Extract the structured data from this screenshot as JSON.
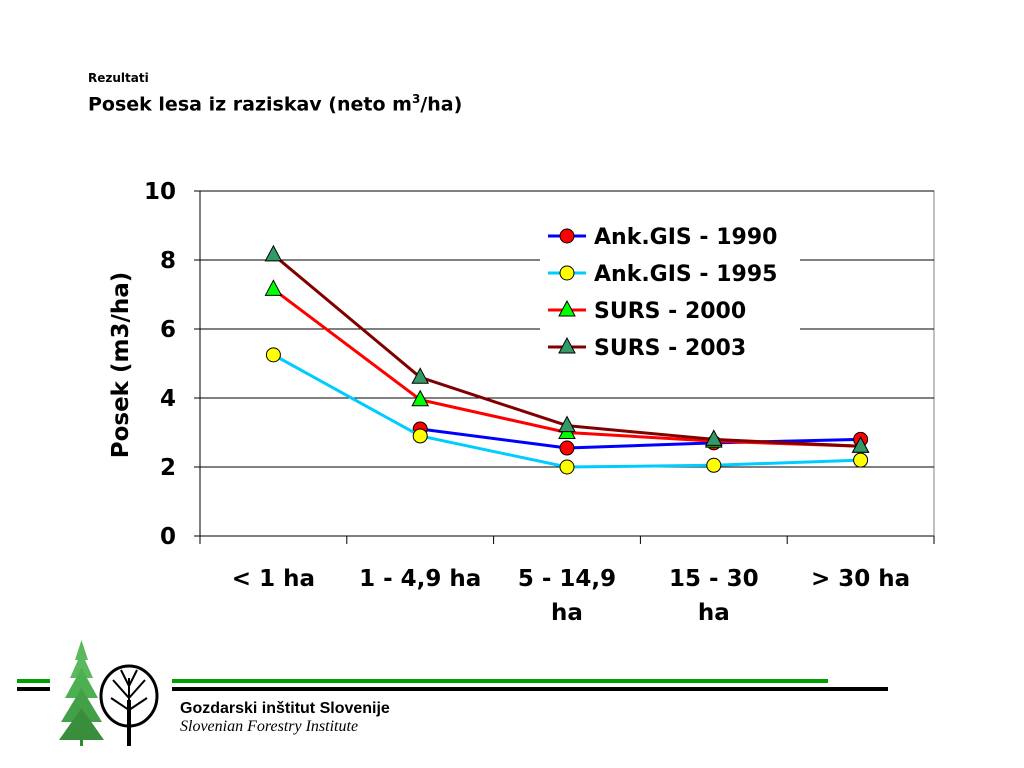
{
  "header": {
    "subtitle": "Rezultati",
    "title": "Posek lesa iz raziskav (neto m",
    "title_sup": "3",
    "title_end": "/ha)"
  },
  "chart_data": {
    "type": "line",
    "title": "",
    "xlabel": "",
    "ylabel": "Posek (m3/ha)",
    "ylim": [
      0,
      10
    ],
    "yticks": [
      0,
      2,
      4,
      6,
      8,
      10
    ],
    "grid": true,
    "legend_position": "top-right",
    "categories": [
      "< 1 ha",
      "1 - 4,9 ha",
      "5 - 14,9 ha",
      "15 - 30 ha",
      "> 30 ha"
    ],
    "category_lines": [
      [
        "< 1 ha"
      ],
      [
        "1 - 4,9 ha"
      ],
      [
        "5 - 14,9",
        "ha"
      ],
      [
        "15 - 30",
        "ha"
      ],
      [
        "> 30 ha"
      ]
    ],
    "series": [
      {
        "name": "Ank.GIS - 1990",
        "values": [
          null,
          3.1,
          2.55,
          2.7,
          2.8
        ],
        "line_color": "#0000ff",
        "marker": "circle",
        "marker_color": "#ff0000"
      },
      {
        "name": "Ank.GIS - 1995",
        "values": [
          5.25,
          2.9,
          2.0,
          2.05,
          2.2
        ],
        "line_color": "#00ccff",
        "marker": "circle",
        "marker_color": "#ffff00"
      },
      {
        "name": "SURS - 2000",
        "values": [
          7.15,
          3.95,
          3.0,
          2.75,
          2.6
        ],
        "line_color": "#ff0000",
        "marker": "triangle",
        "marker_color": "#00ff00"
      },
      {
        "name": "SURS - 2003",
        "values": [
          8.15,
          4.6,
          3.2,
          2.8,
          2.6
        ],
        "line_color": "#800000",
        "marker": "triangle",
        "marker_color": "#339966"
      }
    ]
  },
  "footer": {
    "org_name": "Gozdarski inštitut Slovenije",
    "org_name_en": "Slovenian Forestry Institute",
    "colors": {
      "green": "#00a000",
      "black": "#000000"
    }
  }
}
